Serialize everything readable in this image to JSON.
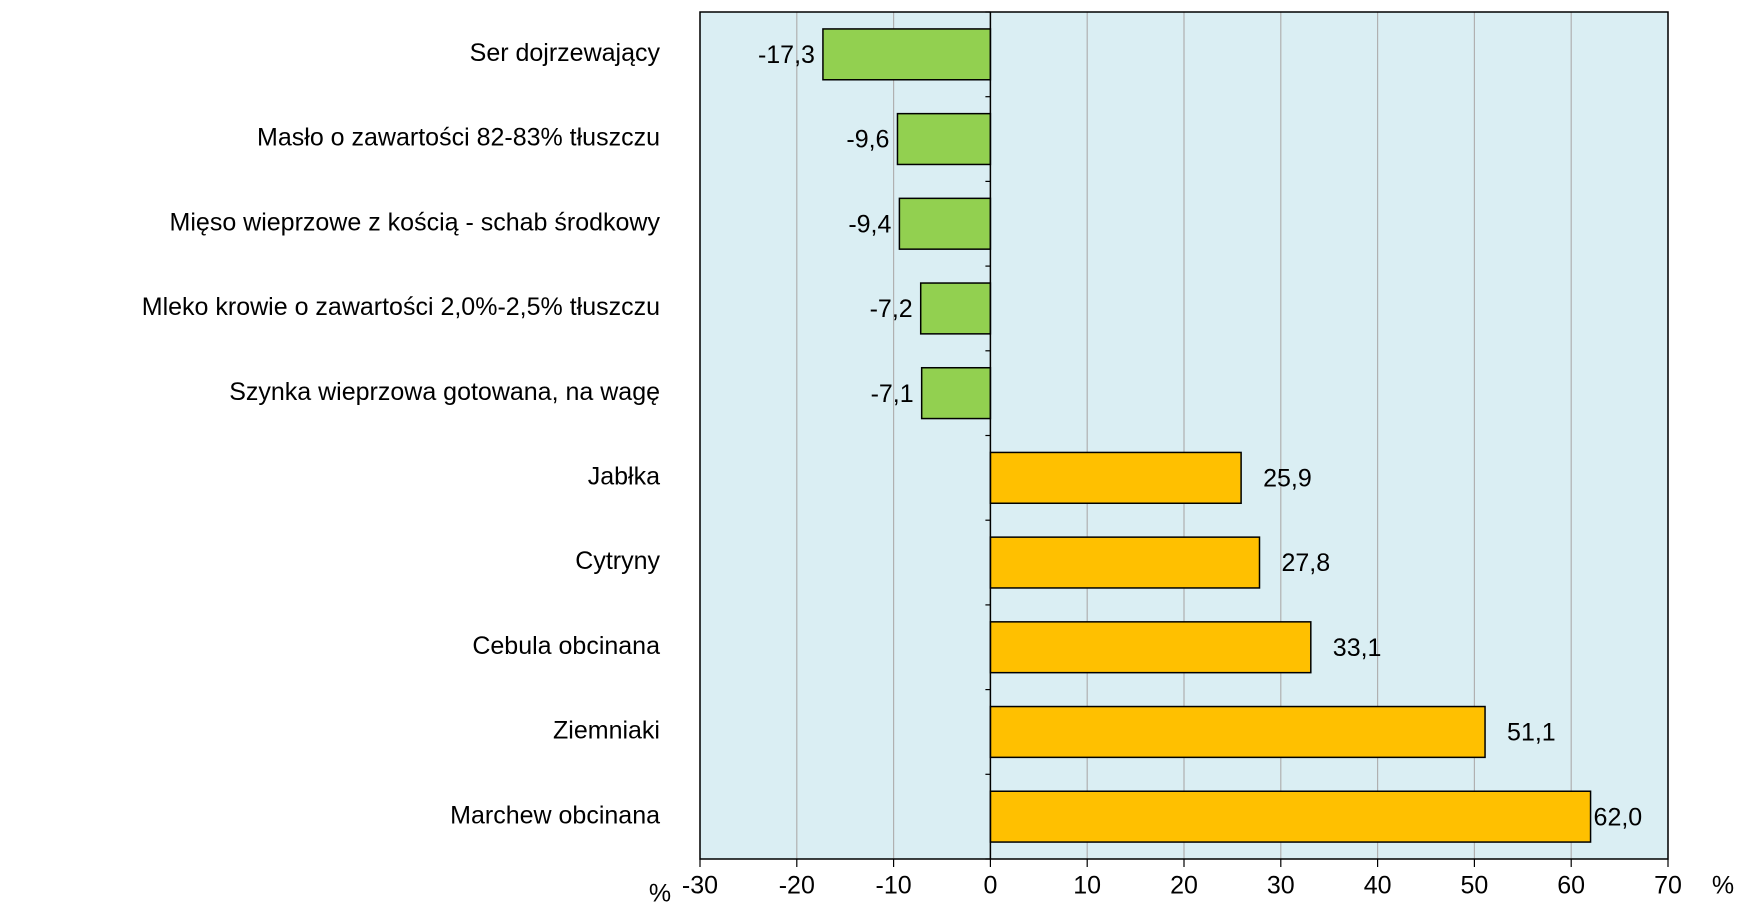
{
  "chart_data": {
    "type": "bar",
    "orientation": "horizontal",
    "categories": [
      "Ser dojrzewający",
      "Masło o zawartości 82-83% tłuszczu",
      "Mięso wieprzowe z kością - schab środkowy",
      "Mleko krowie o zawartości 2,0%-2,5% tłuszczu",
      "Szynka wieprzowa gotowana, na wagę",
      "Jabłka",
      "Cytryny",
      "Cebula obcinana",
      "Ziemniaki",
      "Marchew obcinana"
    ],
    "values": [
      -17.3,
      -9.6,
      -9.4,
      -7.2,
      -7.1,
      25.9,
      27.8,
      33.1,
      51.1,
      62.0
    ],
    "value_labels": [
      "-17,3",
      "-9,6",
      "-9,4",
      "-7,2",
      "-7,1",
      "25,9",
      "27,8",
      "33,1",
      "51,1",
      "62,0"
    ],
    "colors": [
      "#92d050",
      "#92d050",
      "#92d050",
      "#92d050",
      "#92d050",
      "#ffc000",
      "#ffc000",
      "#ffc000",
      "#ffc000",
      "#ffc000"
    ],
    "xlabel": "%",
    "xlim": [
      -30,
      70
    ],
    "xticks": [
      -30,
      -20,
      -10,
      0,
      10,
      20,
      30,
      40,
      50,
      60,
      70
    ],
    "grid": true
  }
}
